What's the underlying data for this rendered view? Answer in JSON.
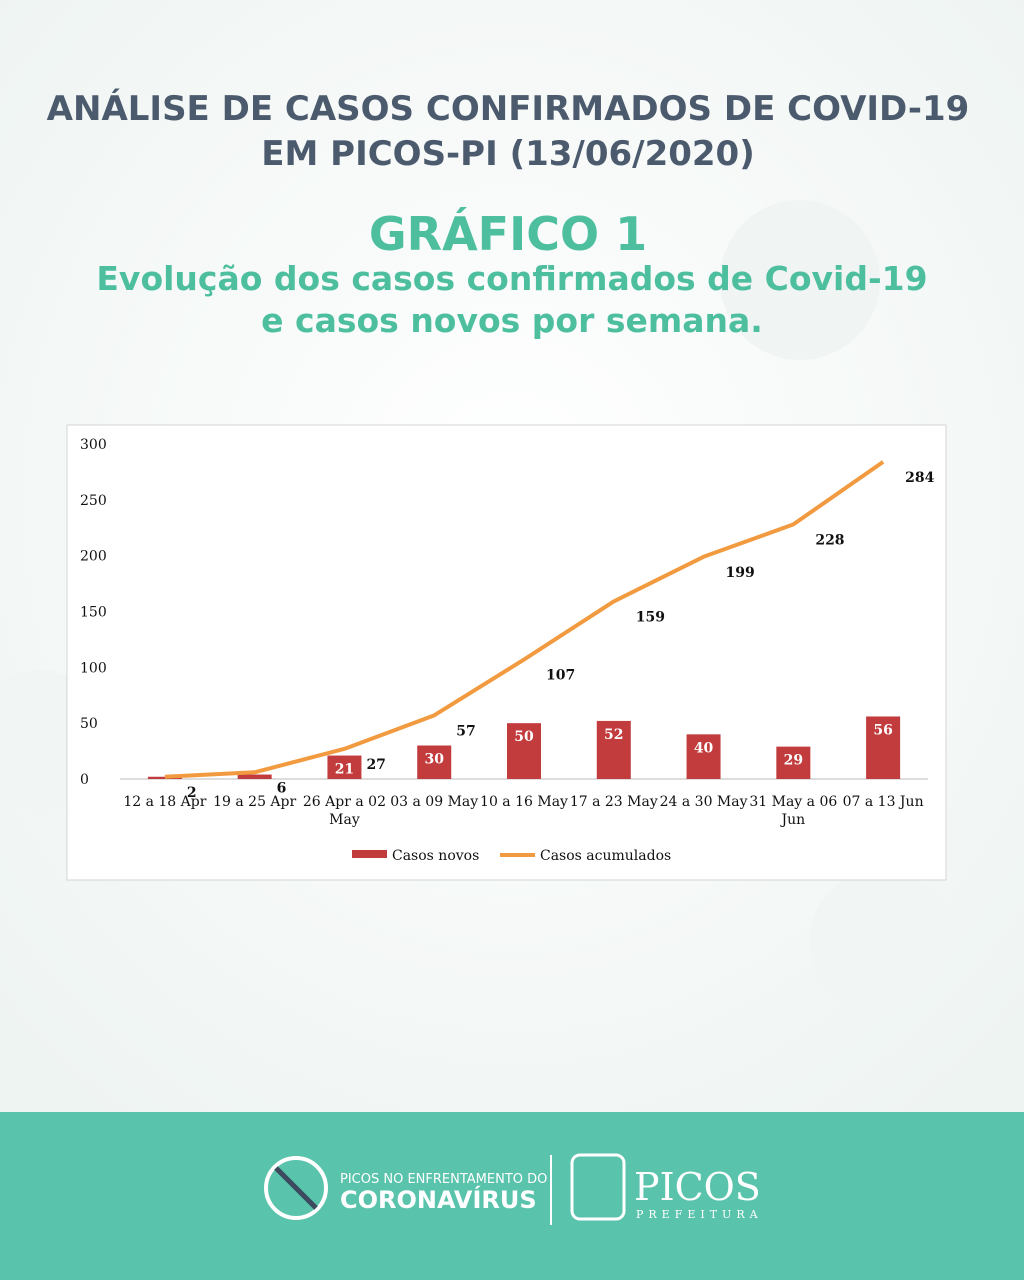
{
  "header": {
    "title_lines": [
      "ANÁLISE DE CASOS CONFIRMADOS DE COVID-19",
      "EM PICOS-PI (13/06/2020)"
    ],
    "chart_label": "GRÁFICO 1",
    "subtitle_lines": [
      "Evolução dos casos confirmados de Covid-19",
      "e casos novos por semana."
    ]
  },
  "chart_data": {
    "type": "bar_line",
    "categories": [
      "12 a 18 Apr",
      "19 a 25 Apr",
      "26 Apr a 02 May",
      "03 a 09 May",
      "10 a 16 May",
      "17 a 23 May",
      "24 a 30 May",
      "31 May a 06 Jun",
      "07 a 13 Jun"
    ],
    "series": [
      {
        "name": "Casos novos",
        "type": "bar",
        "color": "#c23b3d",
        "values": [
          2,
          4,
          21,
          30,
          50,
          52,
          40,
          29,
          56
        ],
        "value_labels": [
          null,
          null,
          "21",
          "30",
          "50",
          "52",
          "40",
          "29",
          "56"
        ]
      },
      {
        "name": "Casos acumulados",
        "type": "line",
        "color": "#f29a3f",
        "values": [
          2,
          6,
          27,
          57,
          107,
          159,
          199,
          228,
          284
        ]
      }
    ],
    "ylim": [
      0,
      300
    ],
    "yticks": [
      0,
      50,
      100,
      150,
      200,
      250,
      300
    ],
    "grid": false,
    "legend": "bottom"
  },
  "footer": {
    "campaign_small": "PICOS NO ENFRENTAMENTO DO",
    "campaign_big": "CORONAVÍRUS",
    "city": "PICOS",
    "city_sub": "PREFEITURA"
  }
}
